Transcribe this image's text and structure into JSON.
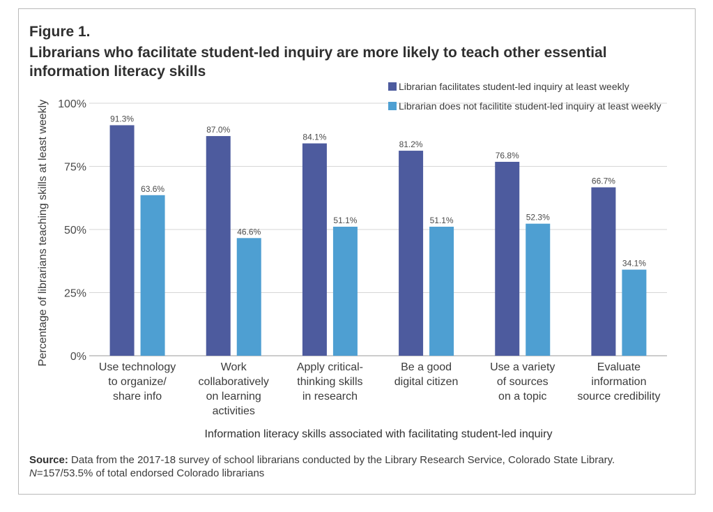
{
  "figure": {
    "label": "Figure 1.",
    "title": "Librarians who facilitate student-led inquiry are more likely to teach other essential information literacy skills"
  },
  "chart_data": {
    "type": "bar",
    "ylabel": "Percentage of librarians teaching skills at least weekly",
    "xlabel": "Information literacy skills associated with facilitating student-led inquiry",
    "ylim": [
      0,
      100
    ],
    "yticks": [
      "0%",
      "25%",
      "50%",
      "75%",
      "100%"
    ],
    "ytick_values": [
      0,
      25,
      50,
      75,
      100
    ],
    "grid": true,
    "legend_position": "top-right",
    "categories": [
      [
        "Use technology",
        "to organize/",
        "share info"
      ],
      [
        "Work",
        "collaboratively",
        "on learning",
        "activities"
      ],
      [
        "Apply critical-",
        "thinking skills",
        "in research"
      ],
      [
        "Be a good",
        "digital citizen"
      ],
      [
        "Use a variety",
        "of sources",
        "on a topic"
      ],
      [
        "Evaluate",
        "information",
        "source credibility"
      ]
    ],
    "series": [
      {
        "name": "Librarian facilitates student-led inquiry at least weekly",
        "color": "#4d5b9e",
        "values": [
          91.3,
          87.0,
          84.1,
          81.2,
          76.8,
          66.7
        ],
        "labels": [
          "91.3%",
          "87.0%",
          "84.1%",
          "81.2%",
          "76.8%",
          "66.7%"
        ]
      },
      {
        "name": "Librarian does not facilitite student-led inquiry at least weekly",
        "color": "#4e9fd2",
        "values": [
          63.6,
          46.6,
          51.1,
          51.1,
          52.3,
          34.1
        ],
        "labels": [
          "63.6%",
          "46.6%",
          "51.1%",
          "51.1%",
          "52.3%",
          "34.1%"
        ]
      }
    ]
  },
  "source": {
    "label": "Source:",
    "text": "Data from the 2017-18 survey of school librarians conducted by the Library Research Service, Colorado State Library.",
    "n_symbol": "N",
    "n_text": "=157/53.5% of total endorsed Colorado librarians"
  }
}
